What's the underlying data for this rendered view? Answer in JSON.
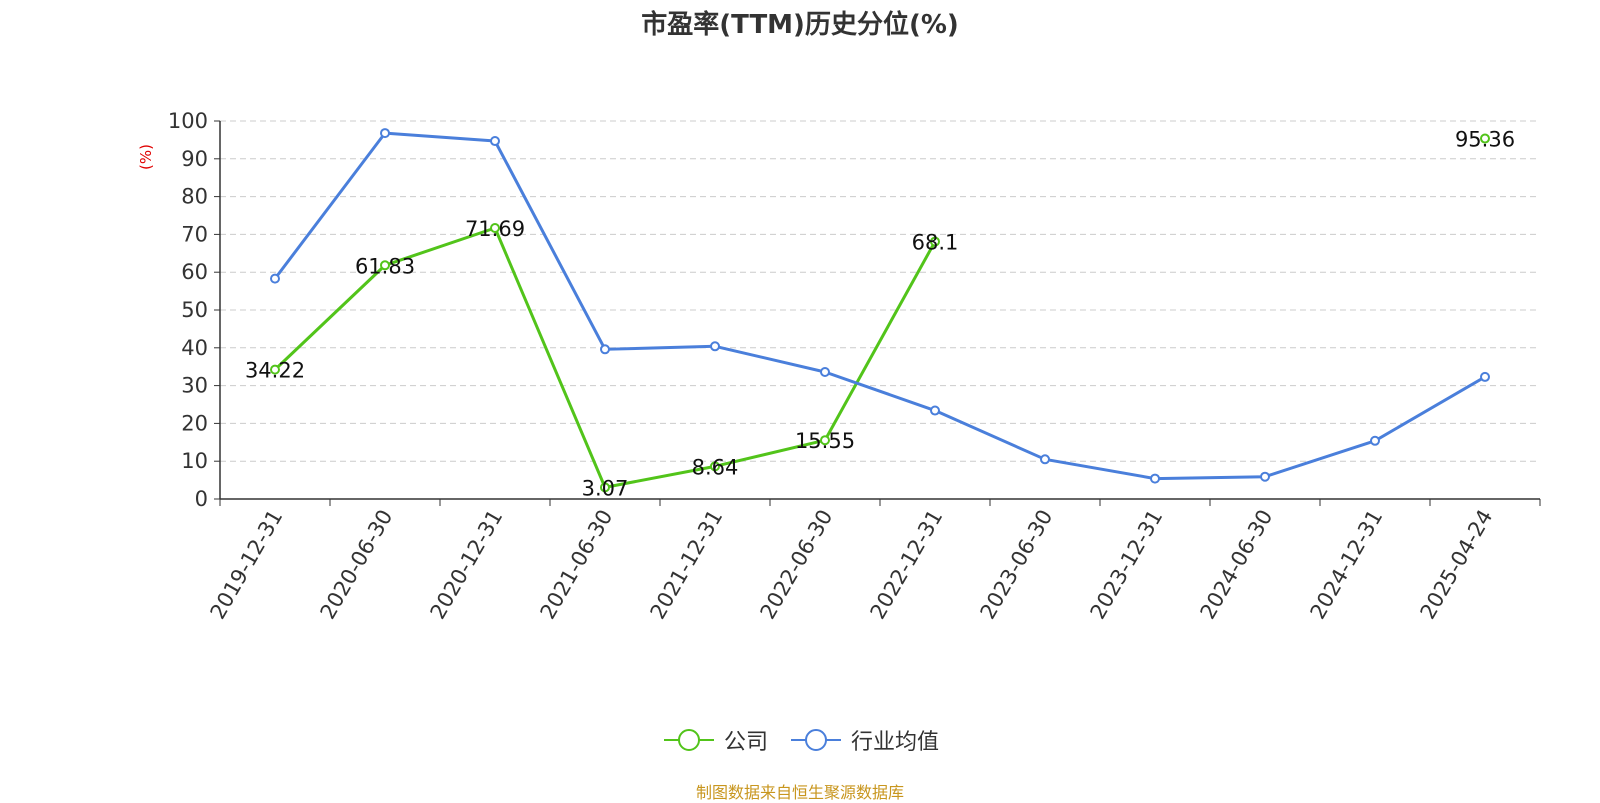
{
  "chart_data": {
    "type": "line",
    "title": "市盈率(TTM)历史分位(%)",
    "ylabel": "(%)",
    "categories": [
      "2019-12-31",
      "2020-06-30",
      "2020-12-31",
      "2021-06-30",
      "2021-12-31",
      "2022-06-30",
      "2022-12-31",
      "2023-06-30",
      "2023-12-31",
      "2024-06-30",
      "2024-12-31",
      "2025-04-24"
    ],
    "ylim": [
      0,
      100
    ],
    "yticks": [
      0,
      10,
      20,
      30,
      40,
      50,
      60,
      70,
      80,
      90,
      100
    ],
    "grid": true,
    "legend_position": "bottom",
    "series": [
      {
        "name": "公司",
        "color": "#52c41a",
        "show_labels": true,
        "values": [
          34.22,
          61.83,
          71.69,
          3.07,
          8.64,
          15.55,
          68.1,
          null,
          null,
          null,
          null,
          95.36
        ]
      },
      {
        "name": "行业均值",
        "color": "#4a7fdb",
        "show_labels": false,
        "values": [
          58.3,
          96.8,
          94.7,
          39.6,
          40.4,
          33.6,
          23.4,
          10.5,
          5.4,
          5.9,
          15.4,
          32.3
        ]
      }
    ]
  },
  "source": "制图数据来自恒生聚源数据库"
}
